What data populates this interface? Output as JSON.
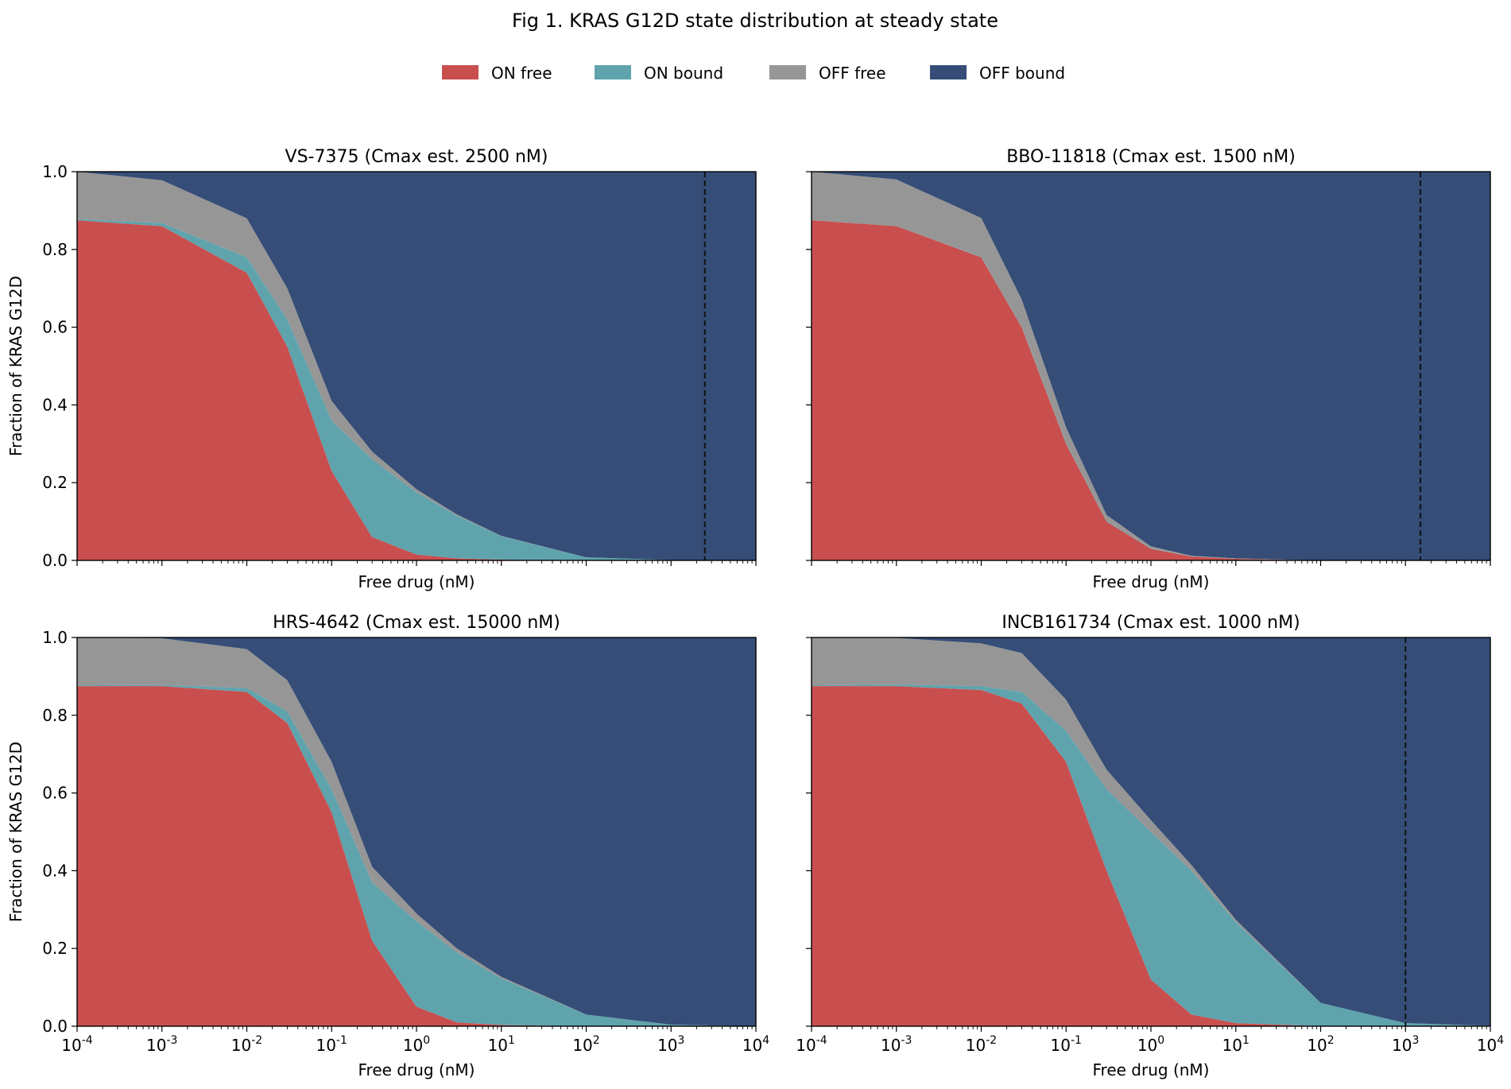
{
  "figure": {
    "title": "Fig 1. KRAS G12D state distribution at steady state"
  },
  "legend": {
    "placement": "top-center",
    "items": [
      {
        "label": "ON free",
        "color": "#c94f4f"
      },
      {
        "label": "ON bound",
        "color": "#5fa3ad"
      },
      {
        "label": "OFF free",
        "color": "#969696"
      },
      {
        "label": "OFF bound",
        "color": "#354d77"
      }
    ]
  },
  "chart_data": [
    {
      "type": "area",
      "stacked": true,
      "title": "VS-7375  (Cmax est. 2500 nM)",
      "xlabel": "Free drug (nM)",
      "ylabel": "Fraction of KRAS G12D",
      "xscale": "log",
      "xlim": [
        0.0001,
        10000
      ],
      "ylim": [
        0,
        1.0
      ],
      "yticks": [
        "0.0",
        "0.2",
        "0.4",
        "0.6",
        "0.8",
        "1.0"
      ],
      "cmax_nM": 2500,
      "x": [
        0.0001,
        0.001,
        0.01,
        0.03,
        0.1,
        0.3,
        1,
        3,
        10,
        100,
        1000,
        10000
      ],
      "series": [
        {
          "name": "ON free",
          "values": [
            0.875,
            0.86,
            0.74,
            0.55,
            0.23,
            0.06,
            0.015,
            0.005,
            0.002,
            0.0,
            0.0,
            0.0
          ]
        },
        {
          "name": "ON bound",
          "values": [
            0.003,
            0.008,
            0.04,
            0.07,
            0.13,
            0.2,
            0.16,
            0.11,
            0.06,
            0.008,
            0.001,
            0.0
          ]
        },
        {
          "name": "OFF free",
          "values": [
            0.122,
            0.11,
            0.1,
            0.08,
            0.05,
            0.02,
            0.008,
            0.003,
            0.001,
            0.0,
            0.0,
            0.0
          ]
        },
        {
          "name": "OFF bound",
          "values": [
            0.0,
            0.022,
            0.12,
            0.3,
            0.59,
            0.72,
            0.817,
            0.882,
            0.937,
            0.992,
            0.999,
            1.0
          ]
        }
      ]
    },
    {
      "type": "area",
      "stacked": true,
      "title": "BBO-11818  (Cmax est. 1500 nM)",
      "xlabel": "Free drug (nM)",
      "ylabel": "",
      "xscale": "log",
      "xlim": [
        0.0001,
        10000
      ],
      "ylim": [
        0,
        1.0
      ],
      "yticks": [
        "0.0",
        "0.2",
        "0.4",
        "0.6",
        "0.8",
        "1.0"
      ],
      "cmax_nM": 1500,
      "x": [
        0.0001,
        0.001,
        0.01,
        0.03,
        0.1,
        0.3,
        1,
        3,
        10,
        100,
        1000,
        10000
      ],
      "series": [
        {
          "name": "ON free",
          "values": [
            0.875,
            0.86,
            0.78,
            0.6,
            0.3,
            0.1,
            0.03,
            0.01,
            0.004,
            0.0,
            0.0,
            0.0
          ]
        },
        {
          "name": "ON bound",
          "values": [
            0.0,
            0.0,
            0.001,
            0.001,
            0.002,
            0.002,
            0.001,
            0.0,
            0.0,
            0.0,
            0.0,
            0.0
          ]
        },
        {
          "name": "OFF free",
          "values": [
            0.125,
            0.12,
            0.1,
            0.07,
            0.04,
            0.015,
            0.005,
            0.002,
            0.001,
            0.0,
            0.0,
            0.0
          ]
        },
        {
          "name": "OFF bound",
          "values": [
            0.0,
            0.02,
            0.119,
            0.329,
            0.658,
            0.883,
            0.964,
            0.988,
            0.995,
            1.0,
            1.0,
            1.0
          ]
        }
      ]
    },
    {
      "type": "area",
      "stacked": true,
      "title": "HRS-4642  (Cmax est. 15000 nM)",
      "xlabel": "Free drug (nM)",
      "ylabel": "Fraction of KRAS G12D",
      "xscale": "log",
      "xlim": [
        0.0001,
        10000
      ],
      "ylim": [
        0,
        1.0
      ],
      "yticks": [
        "0.0",
        "0.2",
        "0.4",
        "0.6",
        "0.8",
        "1.0"
      ],
      "xticks": [
        "10^-4",
        "10^-3",
        "10^-2",
        "10^-1",
        "10^0",
        "10^1",
        "10^2",
        "10^3",
        "10^4"
      ],
      "cmax_nM": 15000,
      "x": [
        0.0001,
        0.001,
        0.01,
        0.03,
        0.1,
        0.3,
        1,
        3,
        10,
        100,
        1000,
        10000
      ],
      "series": [
        {
          "name": "ON free",
          "values": [
            0.875,
            0.875,
            0.86,
            0.78,
            0.55,
            0.22,
            0.05,
            0.01,
            0.003,
            0.0,
            0.0,
            0.0
          ]
        },
        {
          "name": "ON bound",
          "values": [
            0.002,
            0.003,
            0.01,
            0.03,
            0.06,
            0.15,
            0.22,
            0.18,
            0.12,
            0.03,
            0.004,
            0.0
          ]
        },
        {
          "name": "OFF free",
          "values": [
            0.123,
            0.12,
            0.1,
            0.08,
            0.07,
            0.04,
            0.02,
            0.01,
            0.004,
            0.0,
            0.0,
            0.0
          ]
        },
        {
          "name": "OFF bound",
          "values": [
            0.0,
            0.002,
            0.03,
            0.11,
            0.32,
            0.59,
            0.71,
            0.8,
            0.873,
            0.97,
            0.996,
            1.0
          ]
        }
      ]
    },
    {
      "type": "area",
      "stacked": true,
      "title": "INCB161734  (Cmax est. 1000 nM)",
      "xlabel": "Free drug (nM)",
      "ylabel": "",
      "xscale": "log",
      "xlim": [
        0.0001,
        10000
      ],
      "ylim": [
        0,
        1.0
      ],
      "yticks": [
        "0.0",
        "0.2",
        "0.4",
        "0.6",
        "0.8",
        "1.0"
      ],
      "xticks": [
        "10^-4",
        "10^-3",
        "10^-2",
        "10^-1",
        "10^0",
        "10^1",
        "10^2",
        "10^3",
        "10^4"
      ],
      "cmax_nM": 1000,
      "x": [
        0.0001,
        0.001,
        0.01,
        0.03,
        0.1,
        0.3,
        1,
        3,
        10,
        100,
        1000,
        10000
      ],
      "series": [
        {
          "name": "ON free",
          "values": [
            0.875,
            0.875,
            0.865,
            0.83,
            0.68,
            0.4,
            0.12,
            0.03,
            0.008,
            0.0,
            0.0,
            0.0
          ]
        },
        {
          "name": "ON bound",
          "values": [
            0.002,
            0.004,
            0.01,
            0.03,
            0.08,
            0.21,
            0.38,
            0.37,
            0.26,
            0.06,
            0.008,
            0.001
          ]
        },
        {
          "name": "OFF free",
          "values": [
            0.123,
            0.12,
            0.11,
            0.1,
            0.08,
            0.05,
            0.03,
            0.015,
            0.006,
            0.0,
            0.0,
            0.0
          ]
        },
        {
          "name": "OFF bound",
          "values": [
            0.0,
            0.001,
            0.015,
            0.04,
            0.16,
            0.34,
            0.47,
            0.585,
            0.726,
            0.94,
            0.992,
            0.999
          ]
        }
      ]
    }
  ]
}
